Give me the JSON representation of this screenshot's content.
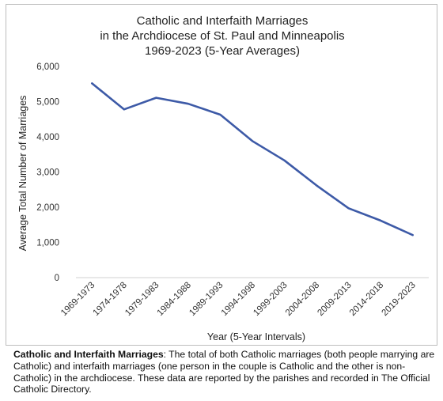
{
  "chart_data": {
    "type": "line",
    "title_lines": [
      "Catholic and Interfaith Marriages",
      "in the Archdiocese of St. Paul and Minneapolis",
      "1969-2023 (5-Year Averages)"
    ],
    "xlabel": "Year (5-Year Intervals)",
    "ylabel": "Average Total Number of Marriages",
    "categories": [
      "1969-1973",
      "1974-1978",
      "1979-1983",
      "1984-1988",
      "1989-1993",
      "1994-1998",
      "1999-2003",
      "2004-2008",
      "2009-2013",
      "2014-2018",
      "2019-2023"
    ],
    "series": [
      {
        "values": [
          5520,
          4780,
          5110,
          4940,
          4630,
          3880,
          3330,
          2620,
          1970,
          1620,
          1210
        ]
      }
    ],
    "yticks": [
      "0",
      "1,000",
      "2,000",
      "3,000",
      "4,000",
      "5,000",
      "6,000"
    ],
    "ylim": [
      0,
      6000
    ],
    "grid": false,
    "line_color": "#3d5aa7"
  },
  "caption": {
    "bold": "Catholic and Interfaith Marriages",
    "text": ": The total of both Catholic marriages (both people marrying are Catholic) and interfaith marriages (one person in the couple is Catholic and the other is non-Catholic) in the archdiocese. These data are reported by the parishes and recorded in The Official Catholic Directory."
  }
}
